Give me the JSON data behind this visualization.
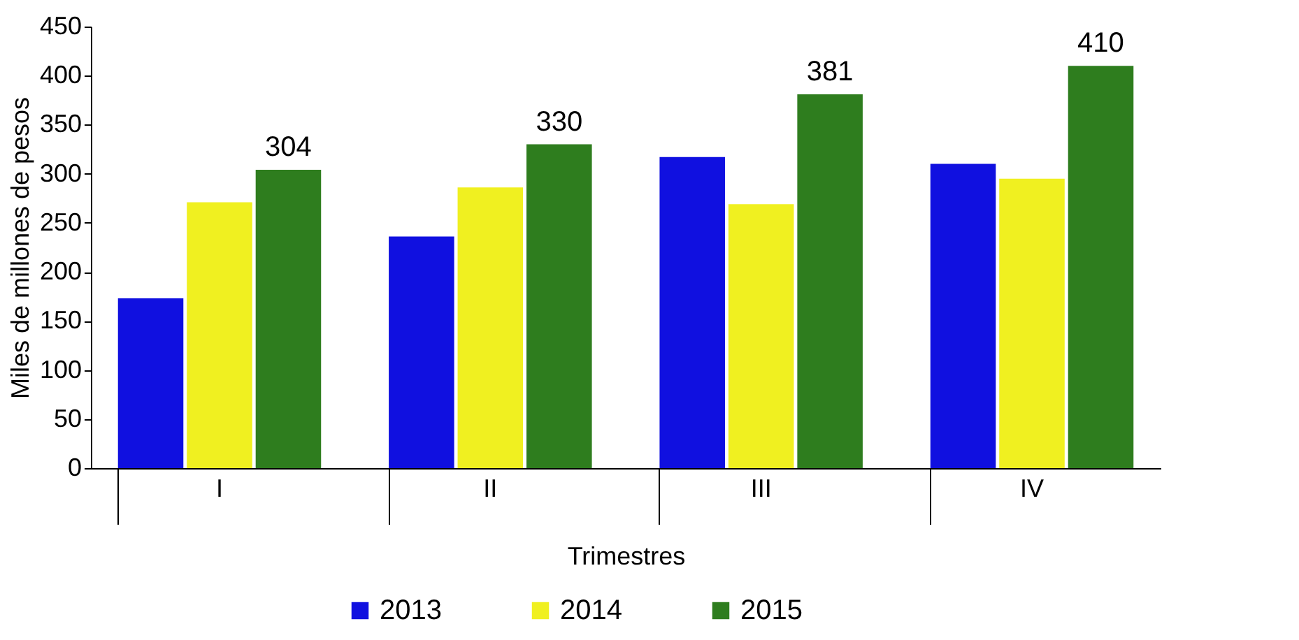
{
  "chart_data": {
    "type": "bar",
    "xlabel": "Trimestres",
    "ylabel": "Miles de millones de pesos",
    "categories": [
      "I",
      "II",
      "III",
      "IV"
    ],
    "series": [
      {
        "name": "2013",
        "color": "#1010e0",
        "values": [
          173,
          236,
          317,
          310
        ]
      },
      {
        "name": "2014",
        "color": "#f0f020",
        "values": [
          271,
          286,
          269,
          295
        ]
      },
      {
        "name": "2015",
        "color": "#2e7d1e",
        "values": [
          304,
          330,
          381,
          410
        ],
        "value_labels": [
          "304",
          "330",
          "381",
          "410"
        ]
      }
    ],
    "ylim": [
      0,
      450
    ],
    "yticks": [
      0,
      50,
      100,
      150,
      200,
      250,
      300,
      350,
      400,
      450
    ],
    "grid": false,
    "legend": "bottom"
  }
}
